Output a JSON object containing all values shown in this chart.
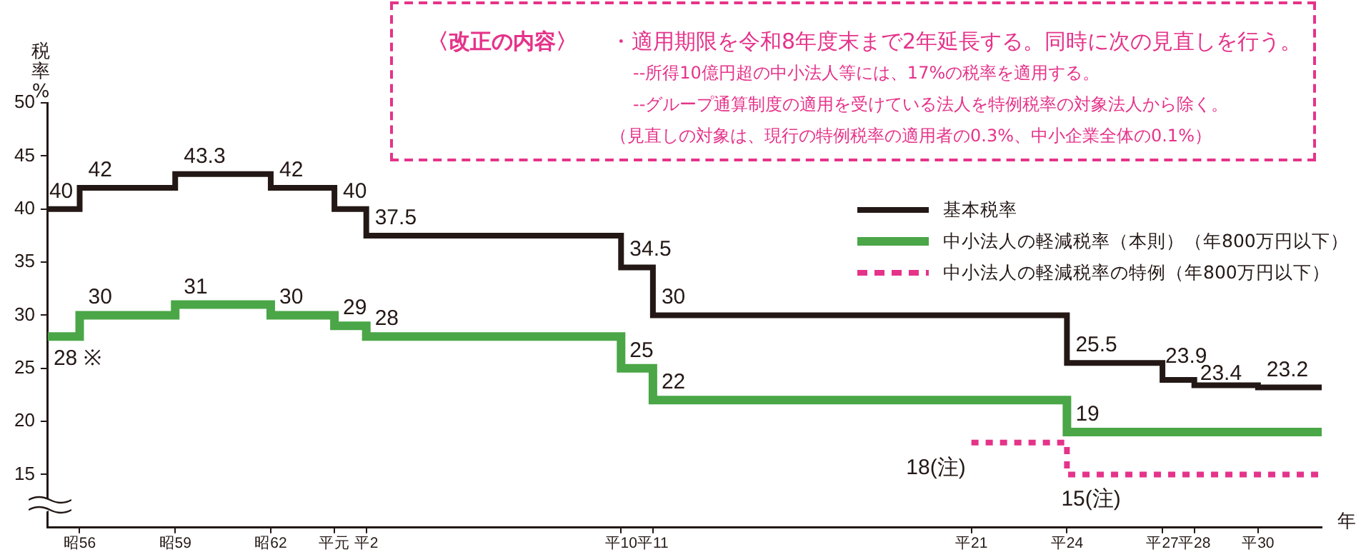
{
  "chart_data": {
    "type": "step",
    "ylabel": "税率%",
    "xlabel": "年",
    "annotations": [
      "〈改正の内容〉",
      "・適用期限を令和8年度末まで2年延長する。同時に次の見直しを行う。",
      "--所得10億円超の中小法人等には、17%の税率を適用する。",
      "--グループ通算制度の適用を受けている法人を特例税率の対象法人から除く。",
      "（見直しの対象は、現行の特例税率の適用者の0.3%、中小企業全体の0.1%）"
    ],
    "categories": [
      null,
      "昭56",
      null,
      null,
      "昭59",
      null,
      null,
      "昭62",
      null,
      "平元",
      "平2",
      null,
      null,
      null,
      null,
      null,
      null,
      null,
      "平10",
      "平11",
      null,
      null,
      null,
      null,
      null,
      null,
      null,
      null,
      null,
      "平21",
      null,
      null,
      "平24",
      null,
      null,
      "平27",
      "平28",
      null,
      "平30",
      null,
      null
    ],
    "ylim": [
      10,
      50
    ],
    "yticks": [
      15,
      20,
      25,
      30,
      35,
      40,
      45,
      50
    ],
    "legend": "right",
    "grid": false,
    "series": [
      {
        "name": "基本税率",
        "color": "#231815",
        "values": [
          40,
          42,
          42,
          42,
          43.3,
          43.3,
          43.3,
          42,
          42,
          40,
          37.5,
          37.5,
          37.5,
          37.5,
          37.5,
          37.5,
          37.5,
          37.5,
          34.5,
          30,
          30,
          30,
          30,
          30,
          30,
          30,
          30,
          30,
          30,
          30,
          30,
          30,
          25.5,
          25.5,
          25.5,
          23.9,
          23.4,
          23.4,
          23.2,
          23.2,
          23.2
        ],
        "value_labels": [
          "40",
          "42",
          null,
          null,
          "43.3",
          null,
          null,
          "42",
          null,
          "40",
          "37.5",
          null,
          null,
          null,
          null,
          null,
          null,
          null,
          "34.5",
          "30",
          null,
          null,
          null,
          null,
          null,
          null,
          null,
          null,
          null,
          null,
          null,
          null,
          "25.5",
          null,
          null,
          "23.9",
          "23.4",
          null,
          "23.2",
          null,
          null
        ]
      },
      {
        "name": "中小法人の軽減税率（本則）（年800万円以下）",
        "color": "#4aa647",
        "values": [
          28,
          30,
          30,
          30,
          31,
          31,
          31,
          30,
          30,
          29,
          28,
          28,
          28,
          28,
          28,
          28,
          28,
          28,
          25,
          22,
          22,
          22,
          22,
          22,
          22,
          22,
          22,
          22,
          22,
          22,
          22,
          22,
          19,
          19,
          19,
          19,
          19,
          19,
          19,
          19,
          19
        ],
        "value_labels": [
          "28 ※",
          "30",
          null,
          null,
          "31",
          null,
          null,
          "30",
          null,
          "29",
          "28",
          null,
          null,
          null,
          null,
          null,
          null,
          null,
          "25",
          "22",
          null,
          null,
          null,
          null,
          null,
          null,
          null,
          null,
          null,
          null,
          null,
          null,
          "19",
          null,
          null,
          null,
          null,
          null,
          null,
          null,
          null
        ]
      },
      {
        "name": "中小法人の軽減税率の特例（年800万円以下）",
        "color": "#e5338a",
        "line_style": "dotted",
        "values": [
          null,
          null,
          null,
          null,
          null,
          null,
          null,
          null,
          null,
          null,
          null,
          null,
          null,
          null,
          null,
          null,
          null,
          null,
          null,
          null,
          null,
          null,
          null,
          null,
          null,
          null,
          null,
          null,
          null,
          18,
          18,
          18,
          15,
          15,
          15,
          15,
          15,
          15,
          15,
          15,
          15
        ],
        "value_labels": [
          null,
          null,
          null,
          null,
          null,
          null,
          null,
          null,
          null,
          null,
          null,
          null,
          null,
          null,
          null,
          null,
          null,
          null,
          null,
          null,
          null,
          null,
          null,
          null,
          null,
          null,
          null,
          null,
          null,
          "18(注)",
          null,
          null,
          "15(注)",
          null,
          null,
          null,
          null,
          null,
          null,
          null,
          null
        ]
      }
    ]
  }
}
